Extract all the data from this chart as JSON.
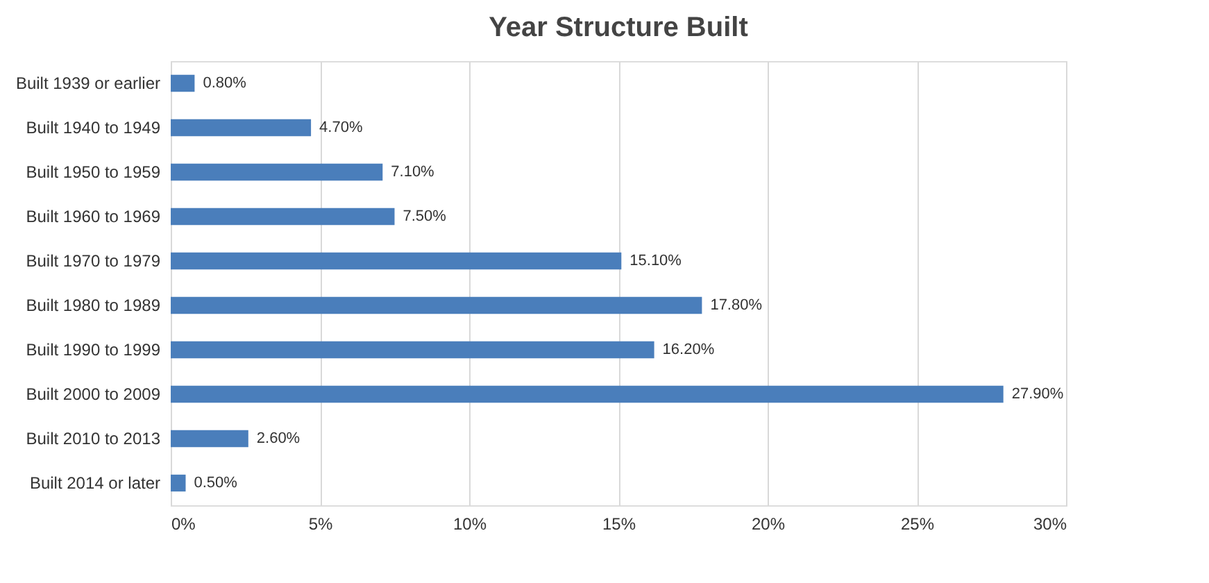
{
  "chart_data": {
    "type": "bar",
    "orientation": "horizontal",
    "title": "Year Structure Built",
    "categories": [
      "Built 1939 or earlier",
      "Built 1940 to 1949",
      "Built 1950 to 1959",
      "Built 1960 to 1969",
      "Built 1970 to 1979",
      "Built 1980 to 1989",
      "Built 1990 to 1999",
      "Built 2000 to 2009",
      "Built 2010 to 2013",
      "Built 2014 or later"
    ],
    "values": [
      0.8,
      4.7,
      7.1,
      7.5,
      15.1,
      17.8,
      16.2,
      27.9,
      2.6,
      0.5
    ],
    "value_labels": [
      "0.80%",
      "4.70%",
      "7.10%",
      "7.50%",
      "15.10%",
      "17.80%",
      "16.20%",
      "27.90%",
      "2.60%",
      "0.50%"
    ],
    "color": "#4a7ebb",
    "xlim": [
      0,
      30
    ],
    "xticks": [
      {
        "value": 0,
        "label": "0%"
      },
      {
        "value": 5,
        "label": "5%"
      },
      {
        "value": 10,
        "label": "10%"
      },
      {
        "value": 15,
        "label": "15%"
      },
      {
        "value": 20,
        "label": "20%"
      },
      {
        "value": 25,
        "label": "25%"
      },
      {
        "value": 30,
        "label": "30%"
      }
    ],
    "grid": "x"
  }
}
